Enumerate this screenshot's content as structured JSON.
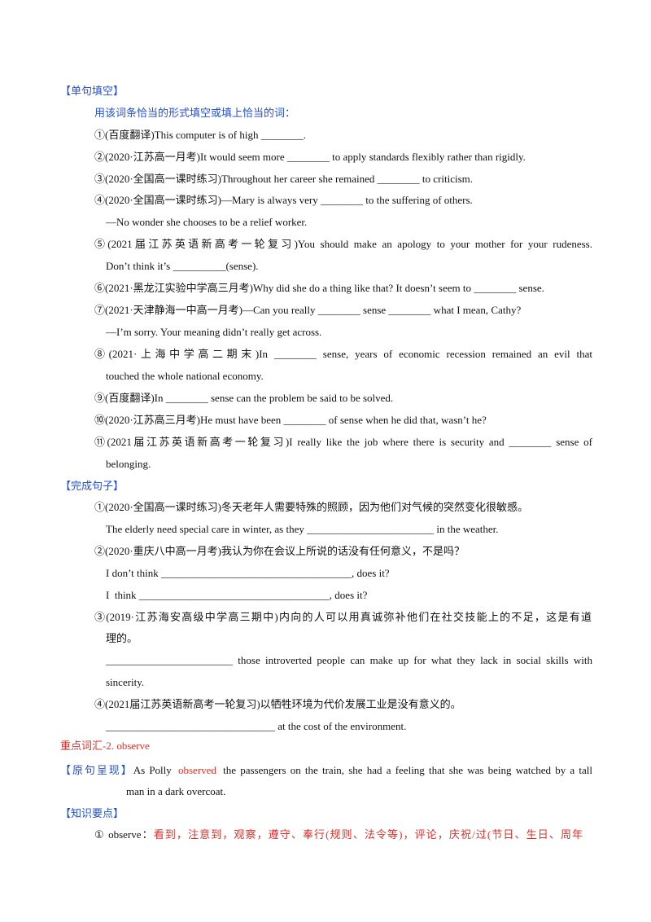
{
  "colors": {
    "heading_blue": "#2350d2",
    "accent_red": "#e1302b",
    "text": "#111111"
  },
  "fill_blank": {
    "heading": "【单句填空】",
    "instruction": "用该词条恰当的形式填空或填上恰当的词：",
    "lines": [
      "①(百度翻译)This computer is of high ________.",
      "②(2020·江苏高一月考)It would seem more ________ to apply standards flexibly rather than rigidly.",
      "③(2020·全国高一课时练习)Throughout her career she remained ________ to criticism.",
      "④(2020·全国高一课时练习)—Mary is always very ________ to the suffering of others.",
      "—No wonder she chooses to be a relief worker.",
      "⑤(2021届江苏英语新高考一轮复习)You should make an apology to your mother for your rudeness.",
      "Don’t think it’s __________(sense).",
      "⑥(2021·黑龙江实验中学高三月考)Why did she do a thing like that? It doesn’t seem to ________ sense.",
      "⑦(2021·天津静海一中高一月考)—Can you really ________ sense ________ what I mean, Cathy?",
      "—I’m sorry. Your meaning didn’t really get across.",
      "⑧(2021·上海中学高二期末)In ________ sense, years of economic recession remained an evil that",
      "touched the whole national economy.",
      "⑨(百度翻译)In ________ sense can the problem be said to be solved.",
      "⑩(2020·江苏高三月考)He must have been ________ of sense when he did that, wasn’t he?",
      "⑪(2021届江苏英语新高考一轮复习)I really like the job where there is security and ________ sense of",
      "belonging."
    ]
  },
  "complete_sentence": {
    "heading": "【完成句子】",
    "lines": [
      "①(2020·全国高一课时练习)冬天老年人需要特殊的照顾，因为他们对气候的突然变化很敏感。",
      "The elderly need special care in winter, as they ________________________ in the weather.",
      "②(2020·重庆八中高一月考)我认为你在会议上所说的话没有任何意义，不是吗？",
      "I don’t think ____________________________________, does it?",
      "I  think ____________________________________, does it?",
      "③(2019·江苏海安高级中学高三期中)内向的人可以用真诚弥补他们在社交技能上的不足，这是有道",
      "理的。",
      "________________________ those introverted people can make up for what they lack in social skills with",
      "sincerity.",
      "④(2021届江苏英语新高考一轮复习)以牺牲环境为代价发展工业是没有意义的。",
      "________________________________ at the cost of the environment."
    ]
  },
  "vocab": {
    "title": "重点词汇-2. observe",
    "original_label": "【原句呈现】",
    "original_pre": "As Polly ",
    "original_keyword": "observed",
    "original_post": " the passengers on the train, she had a feeling that she was being watched by a tall",
    "original_cont": "man in a dark overcoat.",
    "knowledge_label": "【知识要点】",
    "knowledge_num": "① observe：",
    "knowledge_meaning": "看到，注意到，观察，遵守、奉行(规则、法令等)，评论，庆祝/过(节日、生日、周年"
  }
}
